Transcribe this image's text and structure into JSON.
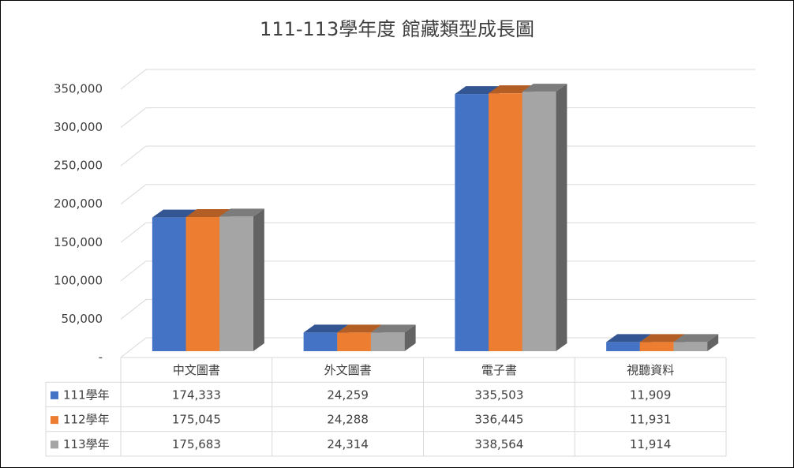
{
  "chart_data": {
    "type": "bar3d",
    "title": "111-113學年度 館藏類型成長圖",
    "categories": [
      "中文圖書",
      "外文圖書",
      "電子書",
      "視聽資料"
    ],
    "series": [
      {
        "name": "111學年",
        "color": "#4472c4",
        "values": [
          174333,
          24259,
          335503,
          11909
        ],
        "value_labels": [
          "174,333",
          "24,259",
          "335,503",
          "11,909"
        ]
      },
      {
        "name": "112學年",
        "color": "#ed7d31",
        "values": [
          175045,
          24288,
          336445,
          11931
        ],
        "value_labels": [
          "175,045",
          "24,288",
          "336,445",
          "11,931"
        ]
      },
      {
        "name": "113學年",
        "color": "#a5a5a5",
        "values": [
          175683,
          24314,
          338564,
          11914
        ],
        "value_labels": [
          "175,683",
          "24,314",
          "338,564",
          "11,914"
        ]
      }
    ],
    "ylim": [
      0,
      350000
    ],
    "yticks": [
      {
        "value": 0,
        "label": "-"
      },
      {
        "value": 50000,
        "label": "50,000"
      },
      {
        "value": 100000,
        "label": "100,000"
      },
      {
        "value": 150000,
        "label": "150,000"
      },
      {
        "value": 200000,
        "label": "200,000"
      },
      {
        "value": 250000,
        "label": "250,000"
      },
      {
        "value": 300000,
        "label": "300,000"
      },
      {
        "value": 350000,
        "label": "350,000"
      }
    ],
    "grid": true
  }
}
